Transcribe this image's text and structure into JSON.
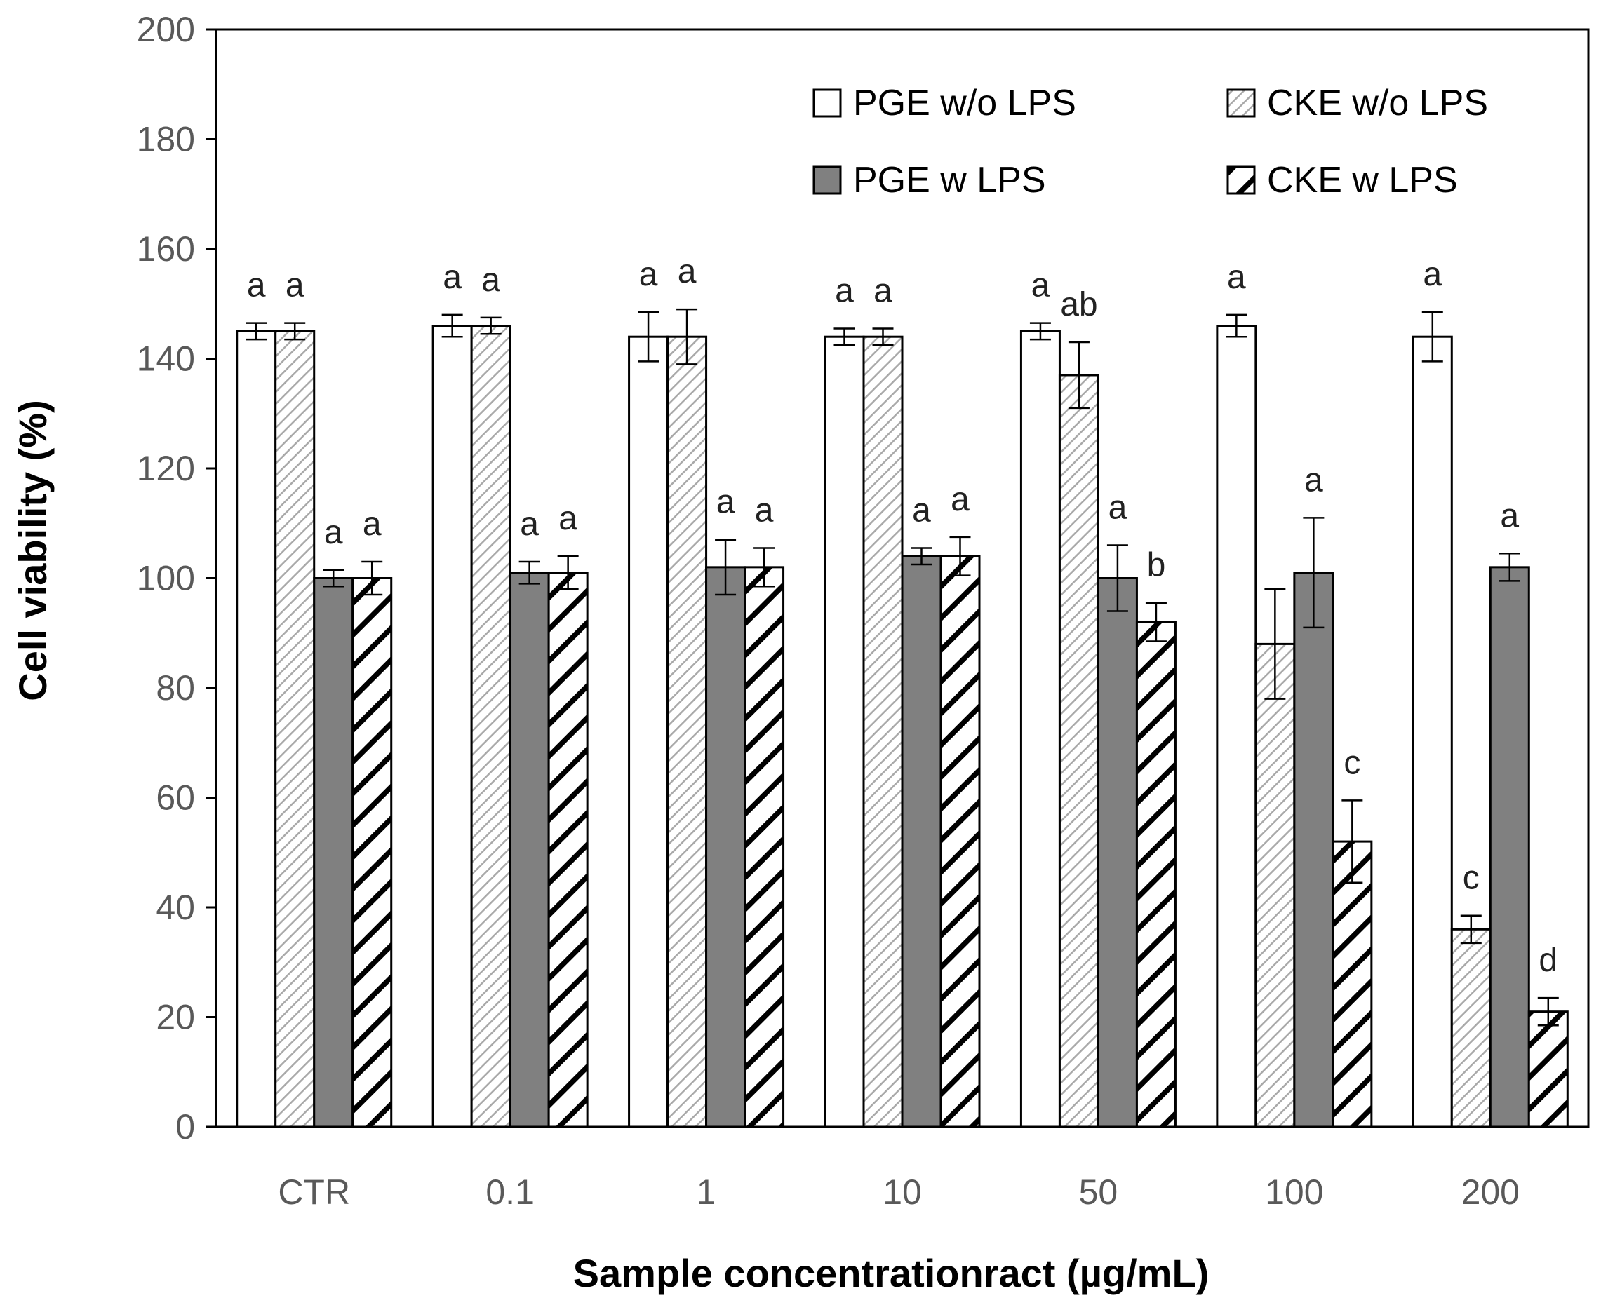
{
  "chart_data": {
    "type": "bar",
    "title": "",
    "xlabel": "Sample concentrationract (µg/mL)",
    "ylabel": "Cell viability (%)",
    "ylim": [
      0,
      200
    ],
    "yticks": [
      "0",
      "20",
      "40",
      "60",
      "80",
      "100",
      "120",
      "140",
      "160",
      "180",
      "200"
    ],
    "categories": [
      "CTR",
      "0.1",
      "1",
      "10",
      "50",
      "100",
      "200"
    ],
    "legend_position": "top-right",
    "series": [
      {
        "name": "PGE w/o LPS",
        "pattern": "white",
        "values": [
          145,
          146,
          144,
          144,
          145,
          146,
          144
        ],
        "errors": [
          1.5,
          2,
          4.5,
          1.5,
          1.5,
          2,
          4.5
        ],
        "labels": [
          "a",
          "a",
          "a",
          "a",
          "a",
          "a",
          "a"
        ]
      },
      {
        "name": "CKE w/o LPS",
        "pattern": "light-hatch",
        "values": [
          145,
          146,
          144,
          144,
          137,
          88,
          36
        ],
        "errors": [
          1.5,
          1.5,
          5,
          1.5,
          6,
          10,
          2.5
        ],
        "labels": [
          "a",
          "a",
          "a",
          "a",
          "ab",
          "",
          "c"
        ]
      },
      {
        "name": "PGE w LPS",
        "pattern": "gray",
        "values": [
          100,
          101,
          102,
          104,
          100,
          101,
          102
        ],
        "errors": [
          1.5,
          2,
          5,
          1.5,
          6,
          10,
          2.5
        ],
        "labels": [
          "a",
          "a",
          "a",
          "a",
          "a",
          "a",
          "a"
        ]
      },
      {
        "name": "CKE w LPS",
        "pattern": "bold-hatch",
        "values": [
          100,
          101,
          102,
          104,
          92,
          52,
          21
        ],
        "errors": [
          3,
          3,
          3.5,
          3.5,
          3.5,
          7.5,
          2.5
        ],
        "labels": [
          "a",
          "a",
          "a",
          "a",
          "b",
          "c",
          "d"
        ]
      }
    ]
  },
  "colors": {
    "axis": "#000000",
    "bar_outline": "#000000",
    "gray_fill": "#808080",
    "light_hatch": "#b3b3b3",
    "bold_hatch": "#000000",
    "tick_text": "#595959"
  }
}
